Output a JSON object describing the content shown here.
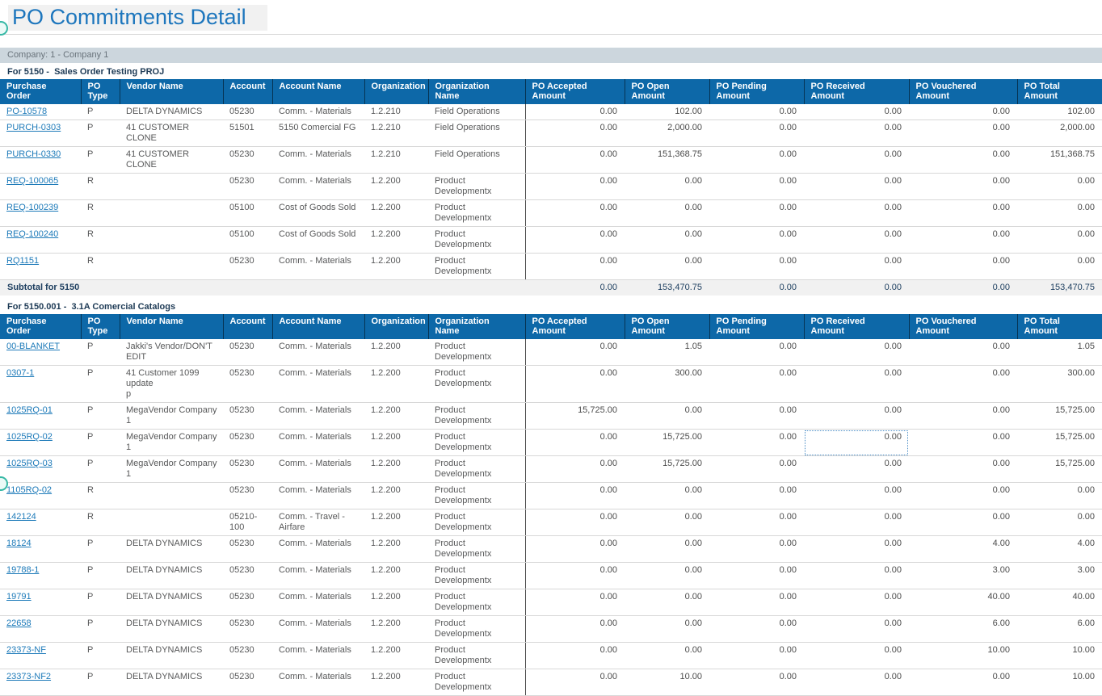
{
  "title": "PO Commitments Detail",
  "company_bar": "Company: 1 - Company 1",
  "columns": [
    "Purchase\nOrder",
    "PO\nType",
    "Vendor Name",
    "Account",
    "Account Name",
    "Organization",
    "Organization\nName",
    "PO Accepted\nAmount",
    "PO Open\nAmount",
    "PO Pending\nAmount",
    "PO Received\nAmount",
    "PO Vouchered\nAmount",
    "PO Total\nAmount"
  ],
  "colors": {
    "header_bg": "#0d68a8",
    "title_blue": "#1d76bd",
    "link_blue": "#1d7ab9",
    "subtotal_navy": "#1e3f60",
    "company_bar_bg": "#ccd6dd",
    "focus_dotted": "#4e8fc7",
    "edge_dot_teal": "#35b8a5"
  },
  "sections": [
    {
      "heading": "For 5150 -  Sales Order Testing PROJ",
      "rows": [
        {
          "po": "PO-10578",
          "type": "P",
          "vendor": "DELTA DYNAMICS",
          "account": "05230",
          "account_name": "Comm. - Materials",
          "org": "1.2.210",
          "org_name": "Field Operations",
          "amounts": [
            "0.00",
            "102.00",
            "0.00",
            "0.00",
            "0.00",
            "102.00"
          ]
        },
        {
          "po": "PURCH-0303",
          "type": "P",
          "vendor": "41 CUSTOMER CLONE",
          "account": "51501",
          "account_name": "5150 Comercial FG",
          "org": "1.2.210",
          "org_name": "Field Operations",
          "amounts": [
            "0.00",
            "2,000.00",
            "0.00",
            "0.00",
            "0.00",
            "2,000.00"
          ]
        },
        {
          "po": "PURCH-0330",
          "type": "P",
          "vendor": "41 CUSTOMER CLONE",
          "account": "05230",
          "account_name": "Comm. - Materials",
          "org": "1.2.210",
          "org_name": "Field Operations",
          "amounts": [
            "0.00",
            "151,368.75",
            "0.00",
            "0.00",
            "0.00",
            "151,368.75"
          ]
        },
        {
          "po": "REQ-100065",
          "type": "R",
          "vendor": "",
          "account": "05230",
          "account_name": "Comm. - Materials",
          "org": "1.2.200",
          "org_name": "Product Developmentx",
          "amounts": [
            "0.00",
            "0.00",
            "0.00",
            "0.00",
            "0.00",
            "0.00"
          ]
        },
        {
          "po": "REQ-100239",
          "type": "R",
          "vendor": "",
          "account": "05100",
          "account_name": "Cost of Goods Sold",
          "org": "1.2.200",
          "org_name": "Product Developmentx",
          "amounts": [
            "0.00",
            "0.00",
            "0.00",
            "0.00",
            "0.00",
            "0.00"
          ]
        },
        {
          "po": "REQ-100240",
          "type": "R",
          "vendor": "",
          "account": "05100",
          "account_name": "Cost of Goods Sold",
          "org": "1.2.200",
          "org_name": "Product Developmentx",
          "amounts": [
            "0.00",
            "0.00",
            "0.00",
            "0.00",
            "0.00",
            "0.00"
          ]
        },
        {
          "po": "RQ1151",
          "type": "R",
          "vendor": "",
          "account": "05230",
          "account_name": "Comm. - Materials",
          "org": "1.2.200",
          "org_name": "Product Developmentx",
          "amounts": [
            "0.00",
            "0.00",
            "0.00",
            "0.00",
            "0.00",
            "0.00"
          ]
        }
      ],
      "subtotal": {
        "label": "Subtotal for 5150",
        "amounts": [
          "0.00",
          "153,470.75",
          "0.00",
          "0.00",
          "0.00",
          "153,470.75"
        ]
      }
    },
    {
      "heading": "For 5150.001 -  3.1A Comercial Catalogs",
      "rows": [
        {
          "po": "00-BLANKET",
          "type": "P",
          "vendor": "Jakki's Vendor/DON'T\nEDIT",
          "account": "05230",
          "account_name": "Comm. - Materials",
          "org": "1.2.200",
          "org_name": "Product Developmentx",
          "amounts": [
            "0.00",
            "1.05",
            "0.00",
            "0.00",
            "0.00",
            "1.05"
          ]
        },
        {
          "po": "0307-1",
          "type": "P",
          "vendor": "41 Customer 1099 update\np",
          "account": "05230",
          "account_name": "Comm. - Materials",
          "org": "1.2.200",
          "org_name": "Product Developmentx",
          "amounts": [
            "0.00",
            "300.00",
            "0.00",
            "0.00",
            "0.00",
            "300.00"
          ]
        },
        {
          "po": "1025RQ-01",
          "type": "P",
          "vendor": "MegaVendor Company 1",
          "account": "05230",
          "account_name": "Comm. - Materials",
          "org": "1.2.200",
          "org_name": "Product Developmentx",
          "amounts": [
            "15,725.00",
            "0.00",
            "0.00",
            "0.00",
            "0.00",
            "15,725.00"
          ]
        },
        {
          "po": "1025RQ-02",
          "type": "P",
          "vendor": "MegaVendor Company 1",
          "account": "05230",
          "account_name": "Comm. - Materials",
          "org": "1.2.200",
          "org_name": "Product Developmentx",
          "amounts": [
            "0.00",
            "15,725.00",
            "0.00",
            "0.00",
            "0.00",
            "15,725.00"
          ],
          "focused_amount_index": 3
        },
        {
          "po": "1025RQ-03",
          "type": "P",
          "vendor": "MegaVendor Company 1",
          "account": "05230",
          "account_name": "Comm. - Materials",
          "org": "1.2.200",
          "org_name": "Product Developmentx",
          "amounts": [
            "0.00",
            "15,725.00",
            "0.00",
            "0.00",
            "0.00",
            "15,725.00"
          ]
        },
        {
          "po": "1105RQ-02",
          "type": "R",
          "vendor": "",
          "account": "05230",
          "account_name": "Comm. - Materials",
          "org": "1.2.200",
          "org_name": "Product Developmentx",
          "amounts": [
            "0.00",
            "0.00",
            "0.00",
            "0.00",
            "0.00",
            "0.00"
          ]
        },
        {
          "po": "142124",
          "type": "R",
          "vendor": "",
          "account": "05210-\n100",
          "account_name": "Comm. - Travel -\nAirfare",
          "org": "1.2.200",
          "org_name": "Product Developmentx",
          "amounts": [
            "0.00",
            "0.00",
            "0.00",
            "0.00",
            "0.00",
            "0.00"
          ]
        },
        {
          "po": "18124",
          "type": "P",
          "vendor": "DELTA DYNAMICS",
          "account": "05230",
          "account_name": "Comm. - Materials",
          "org": "1.2.200",
          "org_name": "Product Developmentx",
          "amounts": [
            "0.00",
            "0.00",
            "0.00",
            "0.00",
            "4.00",
            "4.00"
          ]
        },
        {
          "po": "19788-1",
          "type": "P",
          "vendor": "DELTA DYNAMICS",
          "account": "05230",
          "account_name": "Comm. - Materials",
          "org": "1.2.200",
          "org_name": "Product Developmentx",
          "amounts": [
            "0.00",
            "0.00",
            "0.00",
            "0.00",
            "3.00",
            "3.00"
          ]
        },
        {
          "po": "19791",
          "type": "P",
          "vendor": "DELTA DYNAMICS",
          "account": "05230",
          "account_name": "Comm. - Materials",
          "org": "1.2.200",
          "org_name": "Product Developmentx",
          "amounts": [
            "0.00",
            "0.00",
            "0.00",
            "0.00",
            "40.00",
            "40.00"
          ]
        },
        {
          "po": "22658",
          "type": "P",
          "vendor": "DELTA DYNAMICS",
          "account": "05230",
          "account_name": "Comm. - Materials",
          "org": "1.2.200",
          "org_name": "Product Developmentx",
          "amounts": [
            "0.00",
            "0.00",
            "0.00",
            "0.00",
            "6.00",
            "6.00"
          ]
        },
        {
          "po": "23373-NF",
          "type": "P",
          "vendor": "DELTA DYNAMICS",
          "account": "05230",
          "account_name": "Comm. - Materials",
          "org": "1.2.200",
          "org_name": "Product Developmentx",
          "amounts": [
            "0.00",
            "0.00",
            "0.00",
            "0.00",
            "10.00",
            "10.00"
          ]
        },
        {
          "po": "23373-NF2",
          "type": "P",
          "vendor": "DELTA DYNAMICS",
          "account": "05230",
          "account_name": "Comm. - Materials",
          "org": "1.2.200",
          "org_name": "Product Developmentx",
          "amounts": [
            "0.00",
            "10.00",
            "0.00",
            "0.00",
            "0.00",
            "10.00"
          ]
        }
      ]
    }
  ]
}
